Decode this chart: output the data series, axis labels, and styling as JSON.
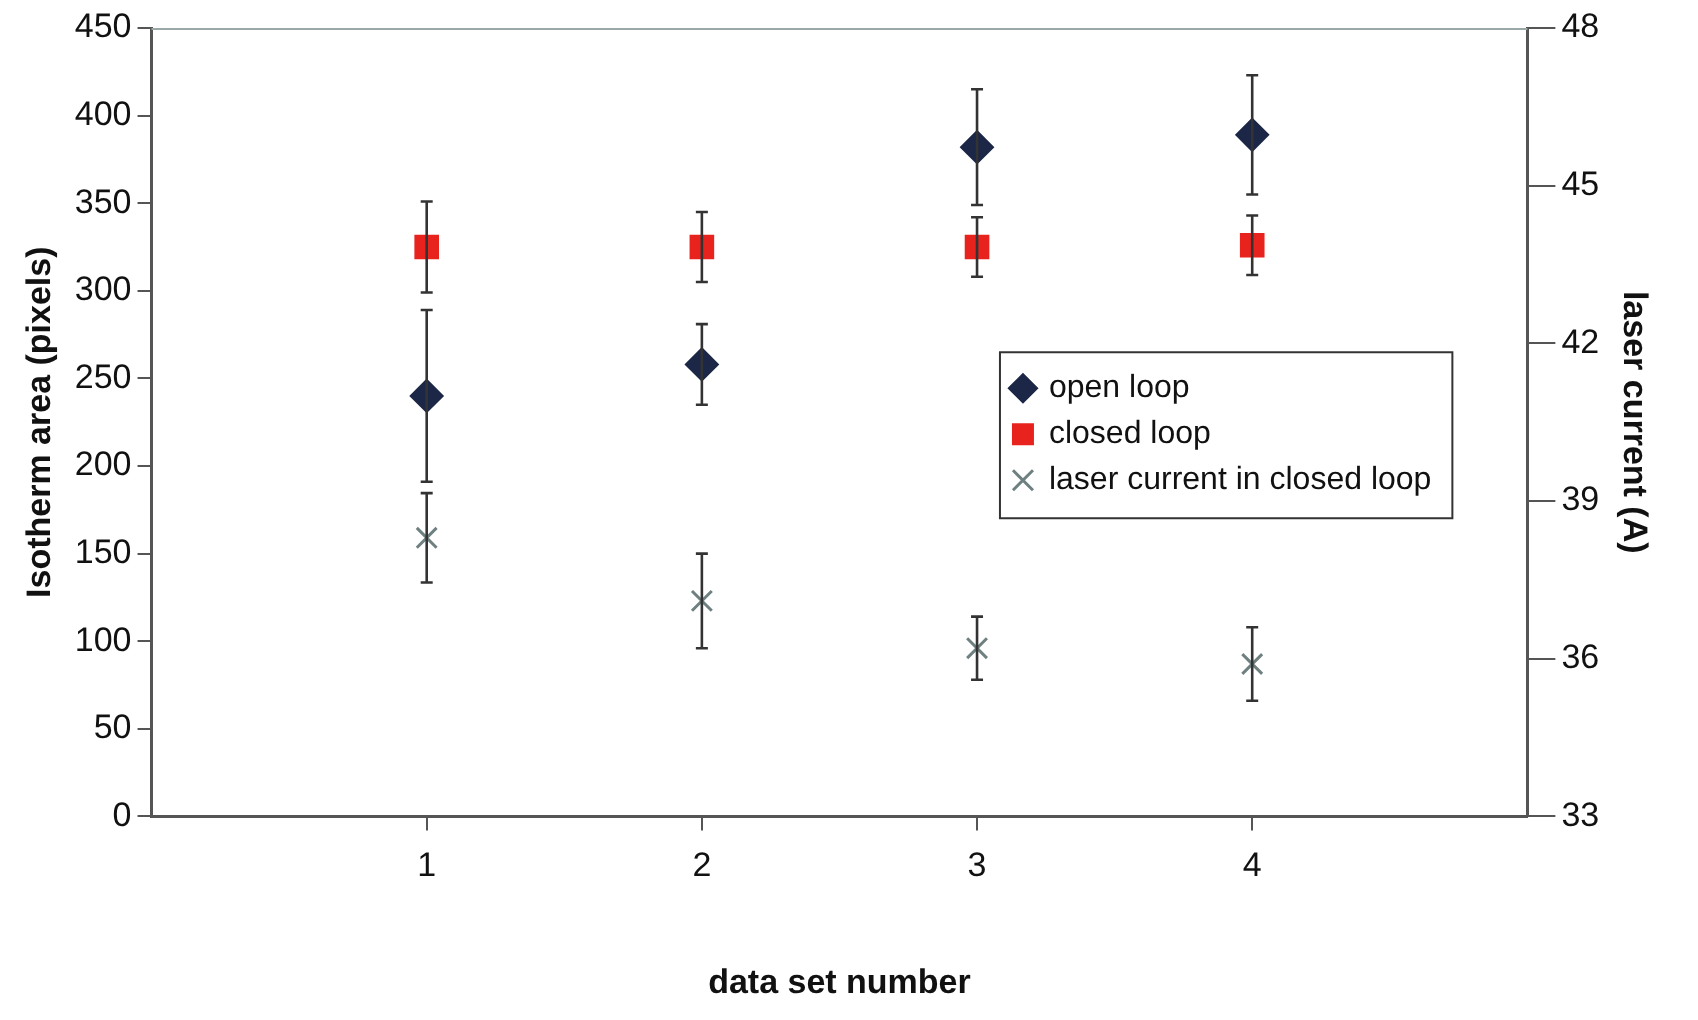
{
  "chart_data": {
    "type": "scatter",
    "xlabel": "data set number",
    "ylabel": "Isotherm area (pixels)",
    "y2label": "laser current (A)",
    "x": [
      1,
      2,
      3,
      4
    ],
    "xlim": [
      0,
      5
    ],
    "xticks": [
      1,
      2,
      3,
      4
    ],
    "ylim": [
      0,
      450
    ],
    "yticks": [
      0,
      50,
      100,
      150,
      200,
      250,
      300,
      350,
      400,
      450
    ],
    "y2lim": [
      33,
      48
    ],
    "y2ticks": [
      33,
      36,
      39,
      42,
      45,
      48
    ],
    "grid": false,
    "legend": "right",
    "series": [
      {
        "name": "open loop",
        "color": "#1c2747",
        "marker": "diamond",
        "values": [
          240,
          258,
          382,
          389
        ],
        "errors": [
          49,
          23,
          33,
          34
        ]
      },
      {
        "name": "closed loop",
        "color": "#e8231e",
        "marker": "square",
        "values": [
          325,
          325,
          325,
          326
        ],
        "errors": [
          26,
          20,
          17,
          17
        ]
      },
      {
        "name": "laser current in closed loop",
        "color": "#6f8080",
        "marker": "cross",
        "axis": "y2",
        "values": [
          38.3,
          37.1,
          36.2,
          35.9
        ],
        "errors": [
          0.85,
          0.9,
          0.6,
          0.7
        ]
      }
    ]
  }
}
